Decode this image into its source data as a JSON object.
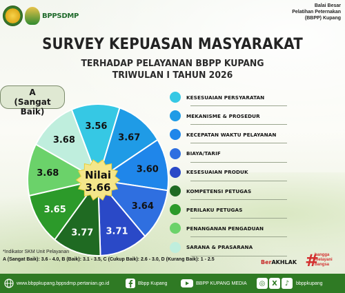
{
  "header": {
    "logo_text": "BPPSDMP",
    "institution": [
      "Balai Besar",
      "Pelatihan Peternakan",
      "(BBPP) Kupang"
    ]
  },
  "title": {
    "main": "SURVEY KEPUASAN MASYARAKAT",
    "line2": "TERHADAP PELAYANAN BBPP KUPANG",
    "line3": "TRIWULAN I TAHUN 2026"
  },
  "grade": {
    "letter": "A",
    "label": "(Sangat Baik)"
  },
  "center": {
    "label": "Nilai",
    "value": "3.66"
  },
  "chart_data": {
    "type": "pie",
    "categories": [
      "KESESUAIAN PERSYARATAN",
      "MEKANISME & PROSEDUR",
      "KECEPATAN WAKTU PELAYANAN",
      "BIAYA/TARIF",
      "KESESUAIAN PRODUK",
      "KOMPETENSI PETUGAS",
      "PERILAKU PETUGAS",
      "PENANGANAN PENGADUAN",
      "SARANA & PRASARANA"
    ],
    "values": [
      3.56,
      3.67,
      3.6,
      3.64,
      3.71,
      3.77,
      3.65,
      3.68,
      3.68
    ],
    "labels": [
      "3.56",
      "3.67",
      "3.60",
      "3.64",
      "3.71",
      "3.77",
      "3.65",
      "3.68",
      "3.68"
    ],
    "colors": [
      "#36c8e4",
      "#1f9be6",
      "#1f86ea",
      "#2f6fe0",
      "#2a49c7",
      "#1f6a22",
      "#2c9a2a",
      "#6bd26a",
      "#bfeedd"
    ],
    "legend_position": "right"
  },
  "footnote": {
    "indicator": "*Indikator SKM Unit Pelayanan",
    "scale": "A (Sangat Baik): 3.6 - 4.0, B (Baik): 3.1 - 3.5, C (Cukup Baik): 2.6 - 3.0, D (Kurang Baik): 1 - 2.5"
  },
  "badges": {
    "berakhlak_prefix": "Ber",
    "berakhlak_main": "AKHLAK",
    "bangga_lines": [
      "bangga",
      "melayani",
      "bangsa"
    ]
  },
  "footer": {
    "website": "www.bbppkupang.bppsdmp.pertanian.go.id",
    "facebook": "Bbpp Kupang",
    "youtube": "BBPP KUPANG MEDIA",
    "handle": "bbppkupang"
  }
}
